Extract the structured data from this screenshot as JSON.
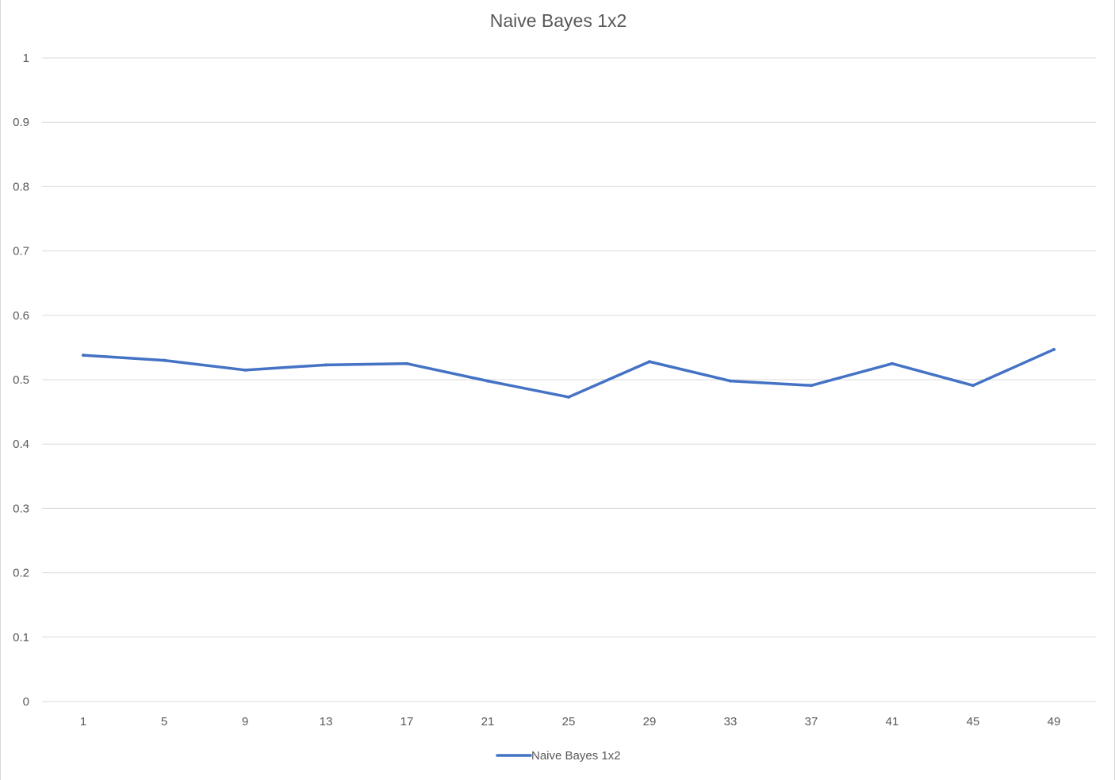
{
  "chart_data": {
    "type": "line",
    "title": "Naive Bayes 1x2",
    "xlabel": "",
    "ylabel": "",
    "categories": [
      "1",
      "5",
      "9",
      "13",
      "17",
      "21",
      "25",
      "29",
      "33",
      "37",
      "41",
      "45",
      "49"
    ],
    "yticks": [
      "0",
      "0.1",
      "0.2",
      "0.3",
      "0.4",
      "0.5",
      "0.6",
      "0.7",
      "0.8",
      "0.9",
      "1"
    ],
    "ylim": [
      0,
      1
    ],
    "grid": true,
    "legend_position": "bottom",
    "series": [
      {
        "name": "Naive Bayes 1x2",
        "color": "#4472C4",
        "values": [
          0.538,
          0.53,
          0.515,
          0.523,
          0.525,
          0.498,
          0.473,
          0.528,
          0.498,
          0.491,
          0.525,
          0.491,
          0.547
        ]
      }
    ]
  }
}
